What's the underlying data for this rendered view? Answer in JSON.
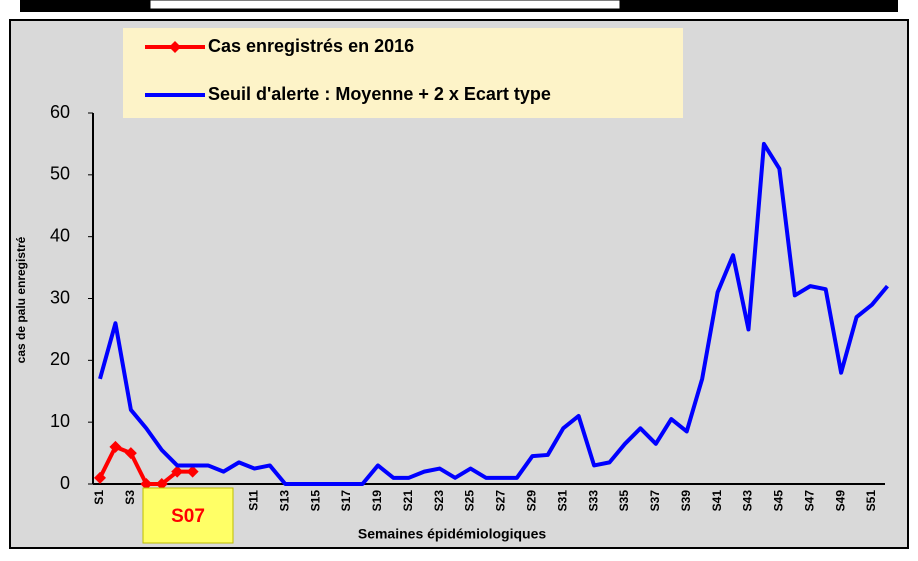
{
  "chart_data": {
    "type": "line",
    "y_label": "cas de palu enregistré",
    "x_label": "Semaines épidémiologiques",
    "annotation": "S07",
    "categories": [
      "S1",
      null,
      "S3",
      null,
      null,
      null,
      null,
      null,
      null,
      null,
      "S11",
      null,
      "S13",
      null,
      "S15",
      null,
      "S17",
      null,
      "S19",
      null,
      "S21",
      null,
      "S23",
      null,
      "S25",
      null,
      "S27",
      null,
      "S29",
      null,
      "S31",
      null,
      "S33",
      null,
      "S35",
      null,
      "S37",
      null,
      "S39",
      null,
      "S41",
      null,
      "S43",
      null,
      "S45",
      null,
      "S47",
      null,
      "S49",
      null,
      "S51",
      null
    ],
    "series": [
      {
        "name": "Cas enregistrés en 2016",
        "color": "#ff0000",
        "marker": true,
        "values": [
          1,
          6,
          5,
          0,
          0,
          2,
          2,
          null,
          null,
          null,
          null,
          null,
          null,
          null,
          null,
          null,
          null,
          null,
          null,
          null,
          null,
          null,
          null,
          null,
          null,
          null,
          null,
          null,
          null,
          null,
          null,
          null,
          null,
          null,
          null,
          null,
          null,
          null,
          null,
          null,
          null,
          null,
          null,
          null,
          null,
          null,
          null,
          null,
          null,
          null,
          null,
          null
        ]
      },
      {
        "name": "Seuil d'alerte : Moyenne + 2 x Ecart type",
        "color": "#0000ff",
        "marker": false,
        "values": [
          17,
          26,
          12,
          9,
          5.5,
          3,
          3,
          3,
          2,
          3.5,
          2.5,
          3,
          0,
          0,
          0,
          0,
          0,
          0,
          3,
          1,
          1,
          2,
          2.5,
          1,
          2.5,
          1,
          1,
          1,
          4.5,
          4.7,
          9,
          11,
          3,
          3.5,
          6.5,
          9,
          6.5,
          10.5,
          8.5,
          17,
          31,
          37,
          25,
          55,
          51,
          30.5,
          32,
          31.5,
          18,
          27,
          29,
          32
        ]
      }
    ],
    "ylim": [
      0,
      60
    ],
    "yticks": [
      0,
      10,
      20,
      30,
      40,
      50,
      60
    ],
    "grid": false
  }
}
